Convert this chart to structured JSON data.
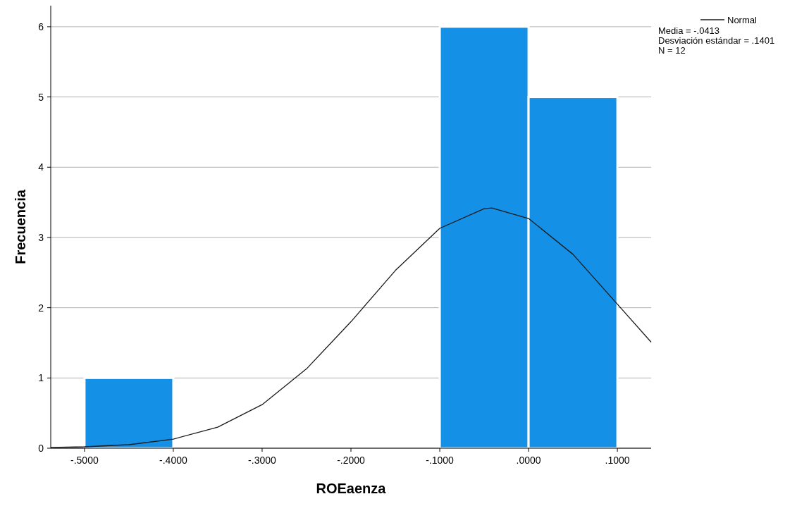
{
  "chart_data": {
    "type": "histogram",
    "xlabel": "ROEaenza",
    "ylabel": "Frecuencia",
    "bins": [
      -0.5,
      -0.4,
      -0.3,
      -0.2,
      -0.1,
      0,
      0.1
    ],
    "values": [
      1,
      0,
      0,
      0,
      6,
      5
    ],
    "color": "#1490e6",
    "series": [
      {
        "type": "line",
        "name": "Normal",
        "color": "#1a1a1a",
        "x": [
          -0.538,
          -0.5,
          -0.45,
          -0.4,
          -0.35,
          -0.3,
          -0.25,
          -0.2,
          -0.15,
          -0.1,
          -0.05,
          -0.0413,
          0,
          0.05,
          0.1,
          0.138
        ],
        "values": [
          0.01,
          0.02,
          0.05,
          0.13,
          0.3,
          0.62,
          1.13,
          1.8,
          2.53,
          3.13,
          3.41,
          3.42,
          3.27,
          2.76,
          2.05,
          1.51
        ]
      }
    ],
    "xlim": [
      -0.538,
      0.138
    ],
    "xticks": [
      {
        "value": -0.5,
        "label": "-.5000"
      },
      {
        "value": -0.4,
        "label": "-.4000"
      },
      {
        "value": -0.3,
        "label": "-.3000"
      },
      {
        "value": -0.2,
        "label": "-.2000"
      },
      {
        "value": -0.1,
        "label": "-.1000"
      },
      {
        "value": 0,
        "label": ".0000"
      },
      {
        "value": 0.1,
        "label": ".1000"
      }
    ],
    "ylim": [
      0,
      6.3
    ],
    "yticks": [
      0,
      1,
      2,
      3,
      4,
      5,
      6
    ],
    "grid": "y",
    "legend": "top right",
    "line_style": "solid",
    "marker": "none",
    "annotations": [
      "Media = -.0413",
      "Desviación estándar = .1401",
      "N = 12"
    ]
  }
}
